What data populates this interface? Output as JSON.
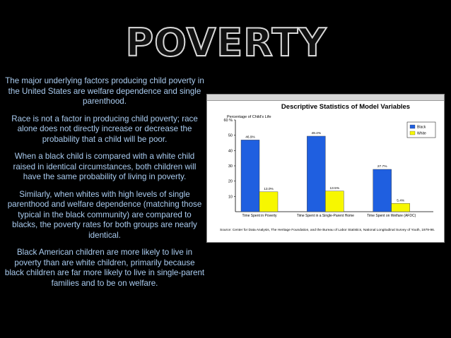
{
  "page": {
    "title": "POVERTY",
    "paragraphs": [
      "The major underlying factors producing child poverty in the United States are welfare dependence and single parenthood.",
      "Race is not a factor in producing child poverty; race alone does not directly increase or decrease the probability that a child will be poor.",
      "When a black child is compared with a white child raised in identical circumstances, both children will have the same probability of living in poverty.",
      "Similarly, when whites with high levels of single parenthood and welfare dependence (matching those typical in the black community) are compared to blacks, the poverty rates for both groups are nearly identical.",
      "Black American children are more likely to live in poverty than are white children, primarily because black children are far more likely to live in single-parent families and to be on welfare."
    ]
  },
  "chart_data": {
    "type": "bar",
    "title": "Descriptive Statistics of Model Variables",
    "ylabel": "Percentage of Child's Life",
    "categories": [
      "Time Spent in Poverty",
      "Time Spent in a Single-Parent Home",
      "Time Spent on Welfare (AFDC)"
    ],
    "series": [
      {
        "name": "Black",
        "color": "#1f5fe0",
        "values": [
          46.9,
          49.4,
          27.7
        ],
        "labels": [
          "46.9%",
          "49.4%",
          "27.7%"
        ]
      },
      {
        "name": "White",
        "color": "#f7f700",
        "values": [
          13.0,
          13.5,
          5.4
        ],
        "labels": [
          "13.0%",
          "13.5%",
          "5.4%"
        ]
      }
    ],
    "ylim": [
      0,
      60
    ],
    "yticks": [
      "10",
      "20",
      "30",
      "40",
      "50",
      "60 %"
    ],
    "grid": false,
    "legend": "top-right",
    "source": "Source: Center for Data Analysis, The Heritage Foundation, and the Bureau of Labor Statistics, National Longitudinal Survey of Youth, 1979-96."
  }
}
